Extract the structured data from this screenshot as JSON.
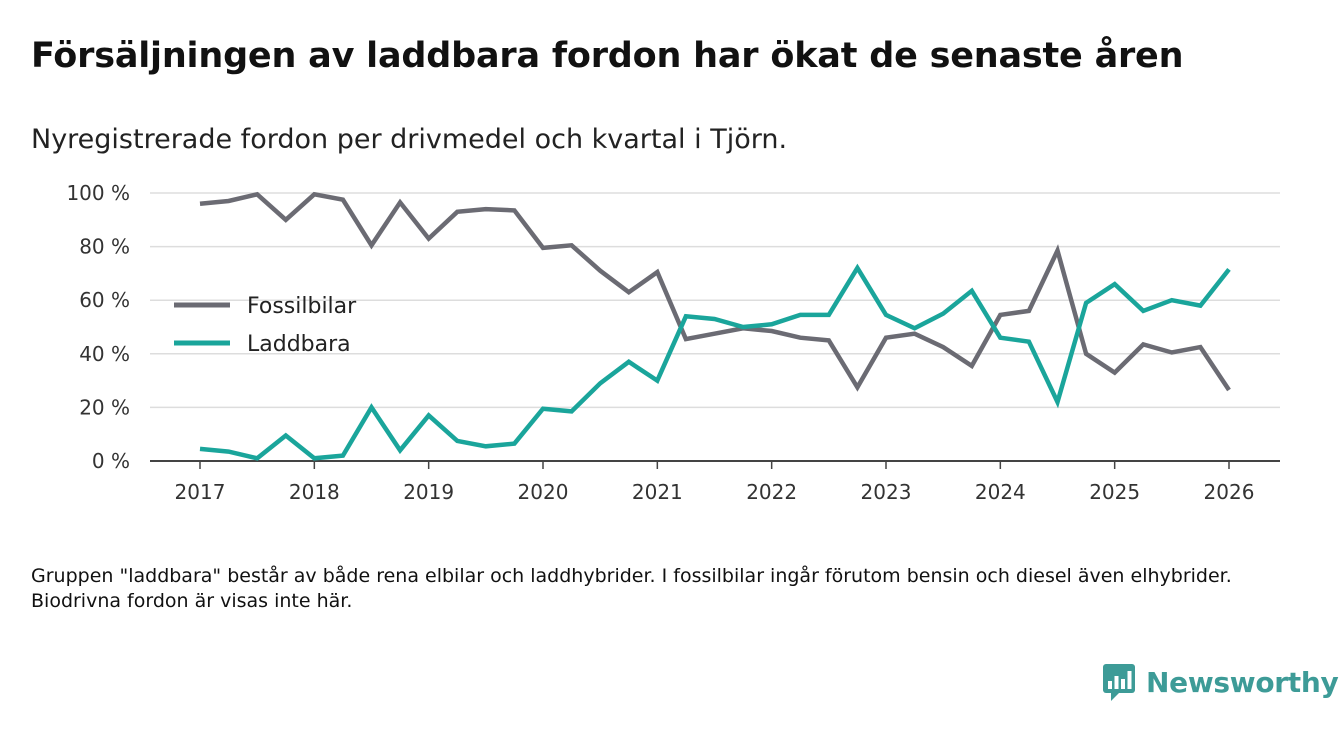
{
  "header": {
    "title": "Försäljningen av laddbara fordon har ökat de senaste åren",
    "subtitle": "Nyregistrerade fordon per drivmedel och kvartal i Tjörn."
  },
  "footer": {
    "note": "Gruppen \"laddbara\" består av både rena elbilar och laddhybrider. I fossilbilar ingår förutom bensin och diesel även elhybrider. Biodrivna fordon är visas inte här.",
    "brand": "Newsworthy"
  },
  "colors": {
    "fossil": "#6b6b73",
    "laddbara": "#1aa59b",
    "grid": "#dddddd",
    "axis": "#444444",
    "brand": "#3d9b97"
  },
  "chart_data": {
    "type": "line",
    "title": "Nyregistrerade fordon per drivmedel och kvartal i Tjörn.",
    "xlabel": "",
    "ylabel": "",
    "xlim": [
      2017,
      2026
    ],
    "ylim": [
      0,
      100
    ],
    "x_ticks": [
      2017,
      2018,
      2019,
      2020,
      2021,
      2022,
      2023,
      2024,
      2025,
      2026
    ],
    "y_ticks": [
      0,
      20,
      40,
      60,
      80,
      100
    ],
    "y_tick_labels": [
      "0 %",
      "20 %",
      "40 %",
      "60 %",
      "80 %",
      "100 %"
    ],
    "legend_position": "middle-left",
    "grid": true,
    "x": [
      2017,
      2017.25,
      2017.5,
      2017.75,
      2018,
      2018.25,
      2018.5,
      2018.75,
      2019,
      2019.25,
      2019.5,
      2019.75,
      2020,
      2020.25,
      2020.5,
      2020.75,
      2021,
      2021.25,
      2021.5,
      2021.75,
      2022,
      2022.25,
      2022.5,
      2022.75,
      2023,
      2023.25,
      2023.5,
      2023.75,
      2024,
      2024.25,
      2024.5,
      2024.75,
      2025,
      2025.25,
      2025.5,
      2025.75,
      2026
    ],
    "series": [
      {
        "name": "Fossilbilar",
        "color": "#6b6b73",
        "values": [
          96,
          97,
          99.5,
          90,
          99.5,
          97.5,
          80.5,
          96.5,
          83,
          93,
          94,
          93.5,
          79.5,
          80.5,
          71,
          63,
          70.5,
          45.5,
          47.5,
          49.5,
          48.5,
          46,
          45,
          27.5,
          46,
          47.5,
          42.5,
          35.5,
          54.5,
          56,
          78.5,
          40,
          33,
          43.5,
          40.5,
          42.5,
          26.5
        ]
      },
      {
        "name": "Laddbara",
        "color": "#1aa59b",
        "values": [
          4.5,
          3.5,
          1,
          9.5,
          1,
          2,
          20,
          4,
          17,
          7.5,
          5.5,
          6.5,
          19.5,
          18.5,
          29,
          37,
          30,
          54,
          53,
          50,
          51,
          54.5,
          54.5,
          72,
          54.5,
          49.5,
          55,
          63.5,
          46,
          44.5,
          22,
          59,
          66,
          56,
          60,
          58,
          71.5
        ]
      }
    ]
  }
}
